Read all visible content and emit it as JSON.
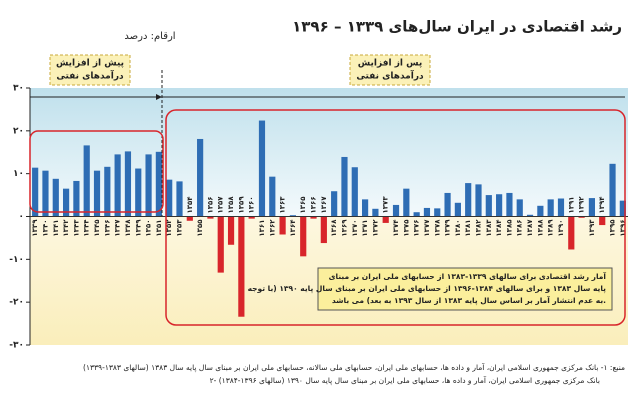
{
  "chart_data": {
    "type": "bar",
    "title": "رشد اقتصادی در ایران سال‌های ۱۳۳۹ – ۱۳۹۶",
    "unit_label": "ارقام: درصد",
    "categories": [
      "۱۳۳۹",
      "۱۳۴۰",
      "۱۳۴۱",
      "۱۳۴۲",
      "۱۳۴۳",
      "۱۳۴۴",
      "۱۳۴۵",
      "۱۳۴۶",
      "۱۳۴۷",
      "۱۳۴۸",
      "۱۳۴۹",
      "۱۳۵۰",
      "۱۳۵۱",
      "۱۳۵۲",
      "۱۳۵۳",
      "۱۳۵۴",
      "۱۳۵۵",
      "۱۳۵۶",
      "۱۳۵۷",
      "۱۳۵۸",
      "۱۳۵۹",
      "۱۳۶۰",
      "۱۳۶۱",
      "۱۳۶۲",
      "۱۳۶۳",
      "۱۳۶۴",
      "۱۳۶۵",
      "۱۳۶۶",
      "۱۳۶۷",
      "۱۳۶۸",
      "۱۳۶۹",
      "۱۳۷۰",
      "۱۳۷۱",
      "۱۳۷۲",
      "۱۳۷۳",
      "۱۳۷۴",
      "۱۳۷۵",
      "۱۳۷۶",
      "۱۳۷۷",
      "۱۳۷۸",
      "۱۳۷۹",
      "۱۳۸۰",
      "۱۳۸۱",
      "۱۳۸۲",
      "۱۳۸۳",
      "۱۳۸۴",
      "۱۳۸۵",
      "۱۳۸۶",
      "۱۳۸۷",
      "۱۳۸۸",
      "۱۳۸۹",
      "۱۳۹۰",
      "۱۳۹۱",
      "۱۳۹۲",
      "۱۳۹۳",
      "۱۳۹۴",
      "۱۳۹۵",
      "۱۳۹۶"
    ],
    "values": [
      11.4,
      10.7,
      8.8,
      6.5,
      8.3,
      16.6,
      10.7,
      11.6,
      14.5,
      15.2,
      11.2,
      14.5,
      15.1,
      8.6,
      8.2,
      -1.0,
      18.1,
      -0.5,
      -13.1,
      -6.6,
      -23.4,
      -0.5,
      22.4,
      9.3,
      -4.2,
      0.3,
      -9.3,
      -0.5,
      -6.2,
      5.9,
      13.9,
      11.5,
      4.0,
      1.8,
      -1.5,
      2.7,
      6.5,
      1.0,
      2.0,
      1.9,
      5.5,
      3.2,
      7.8,
      7.5,
      5.0,
      5.2,
      5.5,
      4.0,
      0.4,
      2.5,
      4.0,
      4.2,
      -7.7,
      -0.3,
      4.3,
      -2.0,
      12.3,
      3.7
    ],
    "positive_color": "#2e6db4",
    "negative_color": "#d8252b",
    "ylim": [
      -30,
      30
    ],
    "yticks": [
      {
        "value": -30,
        "label": "-۳۰"
      },
      {
        "value": -20,
        "label": "-۲۰"
      },
      {
        "value": -10,
        "label": "-۱۰"
      },
      {
        "value": 0,
        "label": "۰"
      },
      {
        "value": 10,
        "label": "۱۰"
      },
      {
        "value": 20,
        "label": "۲۰"
      },
      {
        "value": 30,
        "label": "۳۰"
      }
    ],
    "annotations": {
      "before": [
        "پیش از افزایش",
        "درآمدهای نفتی"
      ],
      "after": [
        "پس از افزایش",
        "درآمدهای نفتی"
      ],
      "note": [
        "آمار رشد اقتصادی برای سالهای ۱۳۳۹-۱۳۸۳ از حسابهای ملی ایران بر مبنای",
        "پایه سال ۱۳۸۳ و برای سالهای ۱۳۸۴-۱۳۹۶ از حسابهای ملی ایران بر مبنای سال پایه ۱۳۹۰ (با توجه",
        "به عدم انتشار آمار بر اساس سال پایه ۱۳۸۳ از سال ۱۳۹۳ به بعد) می باشد."
      ]
    },
    "source": [
      "منبع: ۱- بانک مرکزی جمهوری اسلامی ایران، آمار و داده ها، حسابهای ملی ایران، حسابهای ملی سالانه، حسابهای ملی ایران بر مبنای سال پایه سال ۱۳۸۳ (سالهای ۱۳۸۳-۱۳۳۹)",
      "۲- بانک مرکزی جمهوری اسلامی ایران، آمار و داده ها، حسابهای ملی ایران بر مبنای سال پایه سال ۱۳۹۰ (سالهای ۱۳۹۶-۱۳۸۴)"
    ]
  }
}
